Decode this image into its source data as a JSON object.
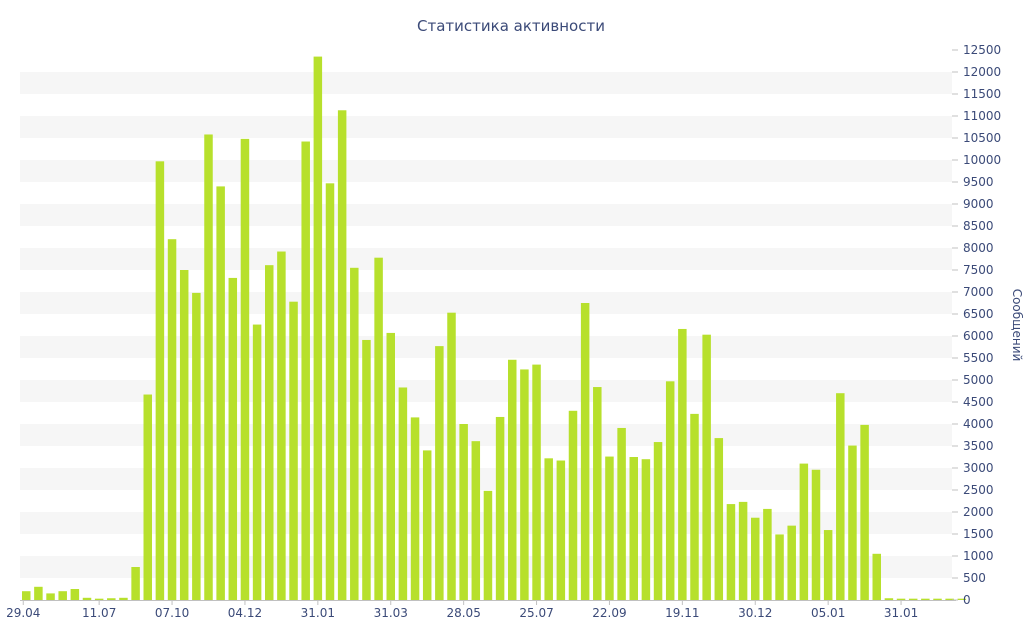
{
  "chart_data": {
    "type": "bar",
    "title": "Статистика активности",
    "ylabel": "Сообщений",
    "xlabel": "",
    "ylim": [
      0,
      12500
    ],
    "y_ticks": [
      0,
      500,
      1000,
      1500,
      2000,
      2500,
      3000,
      3500,
      4000,
      4500,
      5000,
      5500,
      6000,
      6500,
      7000,
      7500,
      8000,
      8500,
      9000,
      9500,
      10000,
      10500,
      11000,
      11500,
      12000,
      12500
    ],
    "x_tick_labels": [
      {
        "index": 0,
        "label": "29.04"
      },
      {
        "index": 6,
        "label": "11.07"
      },
      {
        "index": 12,
        "label": "07.10"
      },
      {
        "index": 18,
        "label": "04.12"
      },
      {
        "index": 24,
        "label": "31.01"
      },
      {
        "index": 30,
        "label": "31.03"
      },
      {
        "index": 36,
        "label": "28.05"
      },
      {
        "index": 42,
        "label": "25.07"
      },
      {
        "index": 48,
        "label": "22.09"
      },
      {
        "index": 54,
        "label": "19.11"
      },
      {
        "index": 60,
        "label": "30.12"
      },
      {
        "index": 66,
        "label": "05.01"
      },
      {
        "index": 72,
        "label": "31.01"
      }
    ],
    "grid": "alternating horizontal bands",
    "y_axis_side": "right",
    "color": "#b7e02c",
    "values": [
      200,
      300,
      150,
      200,
      250,
      50,
      30,
      40,
      50,
      750,
      4670,
      9970,
      8200,
      7500,
      6980,
      10580,
      9400,
      7320,
      10480,
      6260,
      7610,
      7920,
      6780,
      10420,
      12350,
      9470,
      11130,
      7550,
      5910,
      7780,
      6070,
      4830,
      4150,
      3400,
      5770,
      6530,
      4000,
      3610,
      2480,
      4160,
      5460,
      5240,
      5350,
      3220,
      3170,
      4300,
      6750,
      4840,
      3260,
      3910,
      3250,
      3200,
      3590,
      4970,
      6160,
      4230,
      6030,
      3680,
      2180,
      2230,
      1870,
      2070,
      1490,
      1690,
      3100,
      2960,
      1590,
      4700,
      3510,
      3980,
      1050,
      40,
      30,
      30,
      30,
      30,
      30,
      30
    ]
  }
}
